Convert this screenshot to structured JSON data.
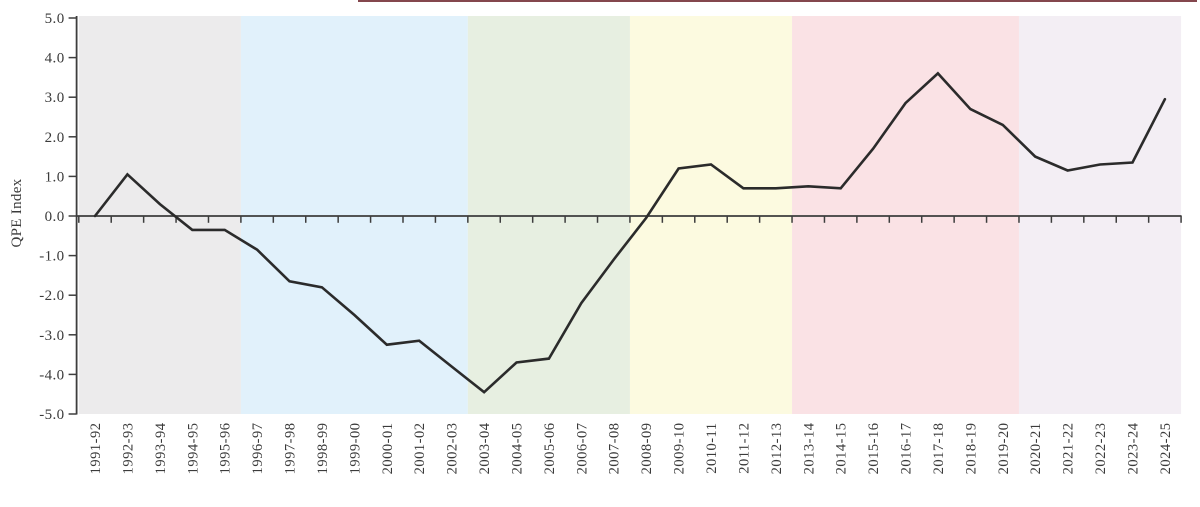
{
  "page": {
    "top_rule_color": "#77333a"
  },
  "chart_data": {
    "type": "line",
    "title": "",
    "xlabel": "",
    "ylabel": "QPE Index",
    "ylim": [
      -5.0,
      5.0
    ],
    "ytick_step": 1.0,
    "ytick_labels": [
      "5.0",
      "4.0",
      "3.0",
      "2.0",
      "1.0",
      "0.0",
      "-1.0",
      "-2.0",
      "-3.0",
      "-4.0",
      "-5.0"
    ],
    "grid": false,
    "legend": "none",
    "line_color": "#2b2b2b",
    "axis_color": "#3d3d3d",
    "text_color": "#3b3b3b",
    "categories": [
      "1991-92",
      "1992-93",
      "1993-94",
      "1994-95",
      "1995-96",
      "1996-97",
      "1997-98",
      "1998-99",
      "1999-00",
      "2000-01",
      "2001-02",
      "2002-03",
      "2003-04",
      "2004-05",
      "2005-06",
      "2006-07",
      "2007-08",
      "2008-09",
      "2009-10",
      "2010-11",
      "2011-12",
      "2012-13",
      "2013-14",
      "2014-15",
      "2015-16",
      "2016-17",
      "2017-18",
      "2018-19",
      "2019-20",
      "2020-21",
      "2021-22",
      "2022-23",
      "2023-24",
      "2024-25"
    ],
    "values": [
      0.0,
      1.05,
      0.3,
      -0.35,
      -0.35,
      -0.85,
      -1.65,
      -1.8,
      -2.5,
      -3.25,
      -3.15,
      -3.8,
      -4.45,
      -3.7,
      -3.6,
      -2.2,
      -1.1,
      -0.05,
      1.2,
      1.3,
      0.7,
      0.7,
      0.75,
      0.7,
      1.7,
      2.85,
      3.6,
      2.7,
      2.3,
      1.5,
      1.15,
      1.3,
      1.35,
      2.95
    ],
    "background_bands": [
      {
        "name": "period-1",
        "start": "1991-92",
        "end": "1995-96",
        "color": "#ECEBEC"
      },
      {
        "name": "period-2",
        "start": "1996-97",
        "end": "2002-03",
        "color": "#E1F1FB"
      },
      {
        "name": "period-3",
        "start": "2003-04",
        "end": "2007-08",
        "color": "#E7EFE1"
      },
      {
        "name": "period-4",
        "start": "2008-09",
        "end": "2012-13",
        "color": "#FCFAE0"
      },
      {
        "name": "period-5",
        "start": "2013-14",
        "end": "2019-20",
        "color": "#FAE2E5"
      },
      {
        "name": "period-6",
        "start": "2020-21",
        "end": "2024-25",
        "color": "#F3EEF4"
      }
    ]
  }
}
